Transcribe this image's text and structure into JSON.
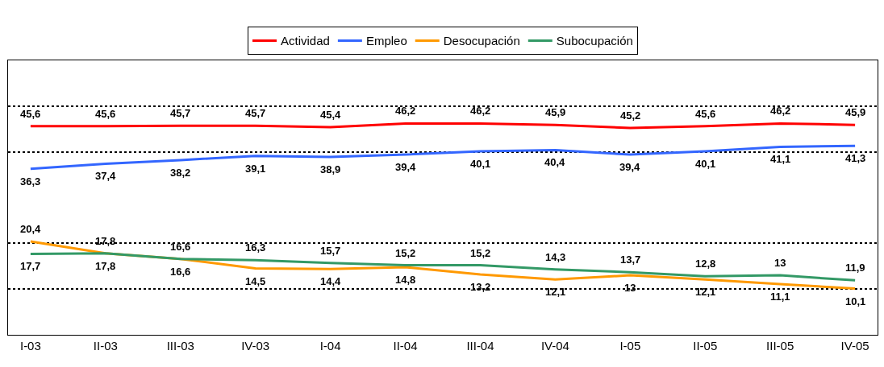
{
  "chart_data": {
    "type": "line",
    "categories": [
      "I-03",
      "II-03",
      "III-03",
      "IV-03",
      "I-04",
      "II-04",
      "III-04",
      "IV-04",
      "I-05",
      "II-05",
      "III-05",
      "IV-05"
    ],
    "series": [
      {
        "name": "Actividad",
        "color": "#ff0000",
        "values": [
          45.6,
          45.6,
          45.7,
          45.7,
          45.4,
          46.2,
          46.2,
          45.9,
          45.2,
          45.6,
          46.2,
          45.9
        ],
        "value_labels": [
          "45,6",
          "45,6",
          "45,7",
          "45,7",
          "45,4",
          "46,2",
          "46,2",
          "45,9",
          "45,2",
          "45,6",
          "46,2",
          "45,9"
        ]
      },
      {
        "name": "Empleo",
        "color": "#3366ff",
        "values": [
          36.3,
          37.4,
          38.2,
          39.1,
          38.9,
          39.4,
          40.1,
          40.4,
          39.4,
          40.1,
          41.1,
          41.3
        ],
        "value_labels": [
          "36,3",
          "37,4",
          "38,2",
          "39,1",
          "38,9",
          "39,4",
          "40,1",
          "40,4",
          "39,4",
          "40,1",
          "41,1",
          "41,3"
        ]
      },
      {
        "name": "Desocupación",
        "color": "#ff9900",
        "values": [
          20.4,
          17.8,
          16.6,
          14.5,
          14.4,
          14.8,
          13.2,
          12.1,
          13,
          12.1,
          11.1,
          10.1
        ],
        "value_labels": [
          "20,4",
          "17,8",
          "16,6",
          "14,5",
          "14,4",
          "14,8",
          "13,2",
          "12,1",
          "13",
          "12,1",
          "11,1",
          "10,1"
        ]
      },
      {
        "name": "Subocupación",
        "color": "#339966",
        "values": [
          17.7,
          17.8,
          16.6,
          16.3,
          15.7,
          15.2,
          15.2,
          14.3,
          13.7,
          12.8,
          13,
          11.9
        ],
        "value_labels": [
          "17,7",
          "17,8",
          "16,6",
          "16,3",
          "15,7",
          "15,2",
          "15,2",
          "14,3",
          "13,7",
          "12,8",
          "13",
          "11,9"
        ]
      }
    ],
    "ylim": [
      0,
      60
    ],
    "yticks": [
      {
        "value": 10,
        "label": null
      },
      {
        "value": 20,
        "label": null
      },
      {
        "value": 40,
        "label": null
      },
      {
        "value": 50,
        "label": null
      }
    ],
    "tick_labels": "x",
    "grid": "y",
    "legend": "top",
    "marker": "none",
    "line_style": "solid"
  }
}
